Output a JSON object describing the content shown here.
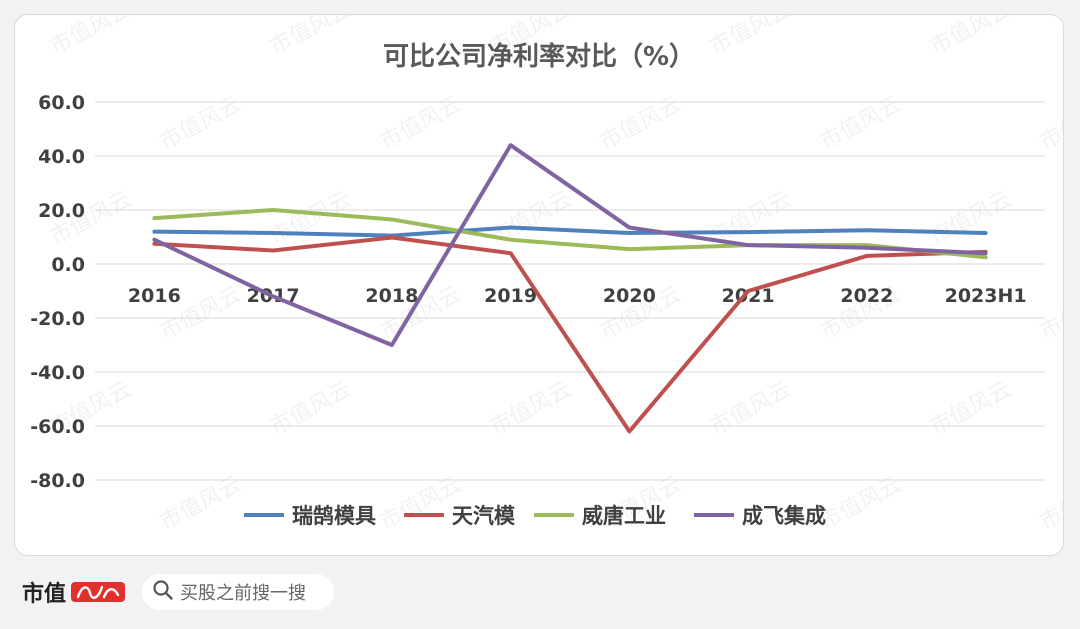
{
  "chart_data": {
    "type": "line",
    "title": "可比公司净利率对比（%）",
    "categories": [
      "2016",
      "2017",
      "2018",
      "2019",
      "2020",
      "2021",
      "2022",
      "2023H1"
    ],
    "ylim": [
      -80,
      60
    ],
    "yticks": [
      60,
      40,
      20,
      0,
      -20,
      -40,
      -60,
      -80
    ],
    "ytick_labels": [
      "60.0",
      "40.0",
      "20.0",
      "0.0",
      "-20.0",
      "-40.0",
      "-60.0",
      "-80.0"
    ],
    "grid": true,
    "legend_position": "bottom",
    "series": [
      {
        "name": "瑞鹄模具",
        "color": "#4f81bd",
        "values": [
          12.0,
          11.5,
          10.5,
          13.5,
          11.5,
          11.8,
          12.5,
          11.5
        ]
      },
      {
        "name": "天汽模",
        "color": "#c0504d",
        "values": [
          7.5,
          5.0,
          9.8,
          4.0,
          -62.0,
          -10.0,
          3.0,
          4.5
        ]
      },
      {
        "name": "威唐工业",
        "color": "#9bbb59",
        "values": [
          17.0,
          20.0,
          16.5,
          9.0,
          5.5,
          7.0,
          7.0,
          2.5
        ]
      },
      {
        "name": "成飞集成",
        "color": "#8064a2",
        "values": [
          9.0,
          -12.0,
          -30.0,
          44.0,
          13.5,
          7.0,
          6.0,
          4.0
        ]
      }
    ]
  },
  "watermark_text": "市值风云",
  "footer": {
    "brand": "市值",
    "brand_mark_icon": "feng-yun-logo",
    "search_icon": "search-icon",
    "search_text": "买股之前搜一搜"
  }
}
